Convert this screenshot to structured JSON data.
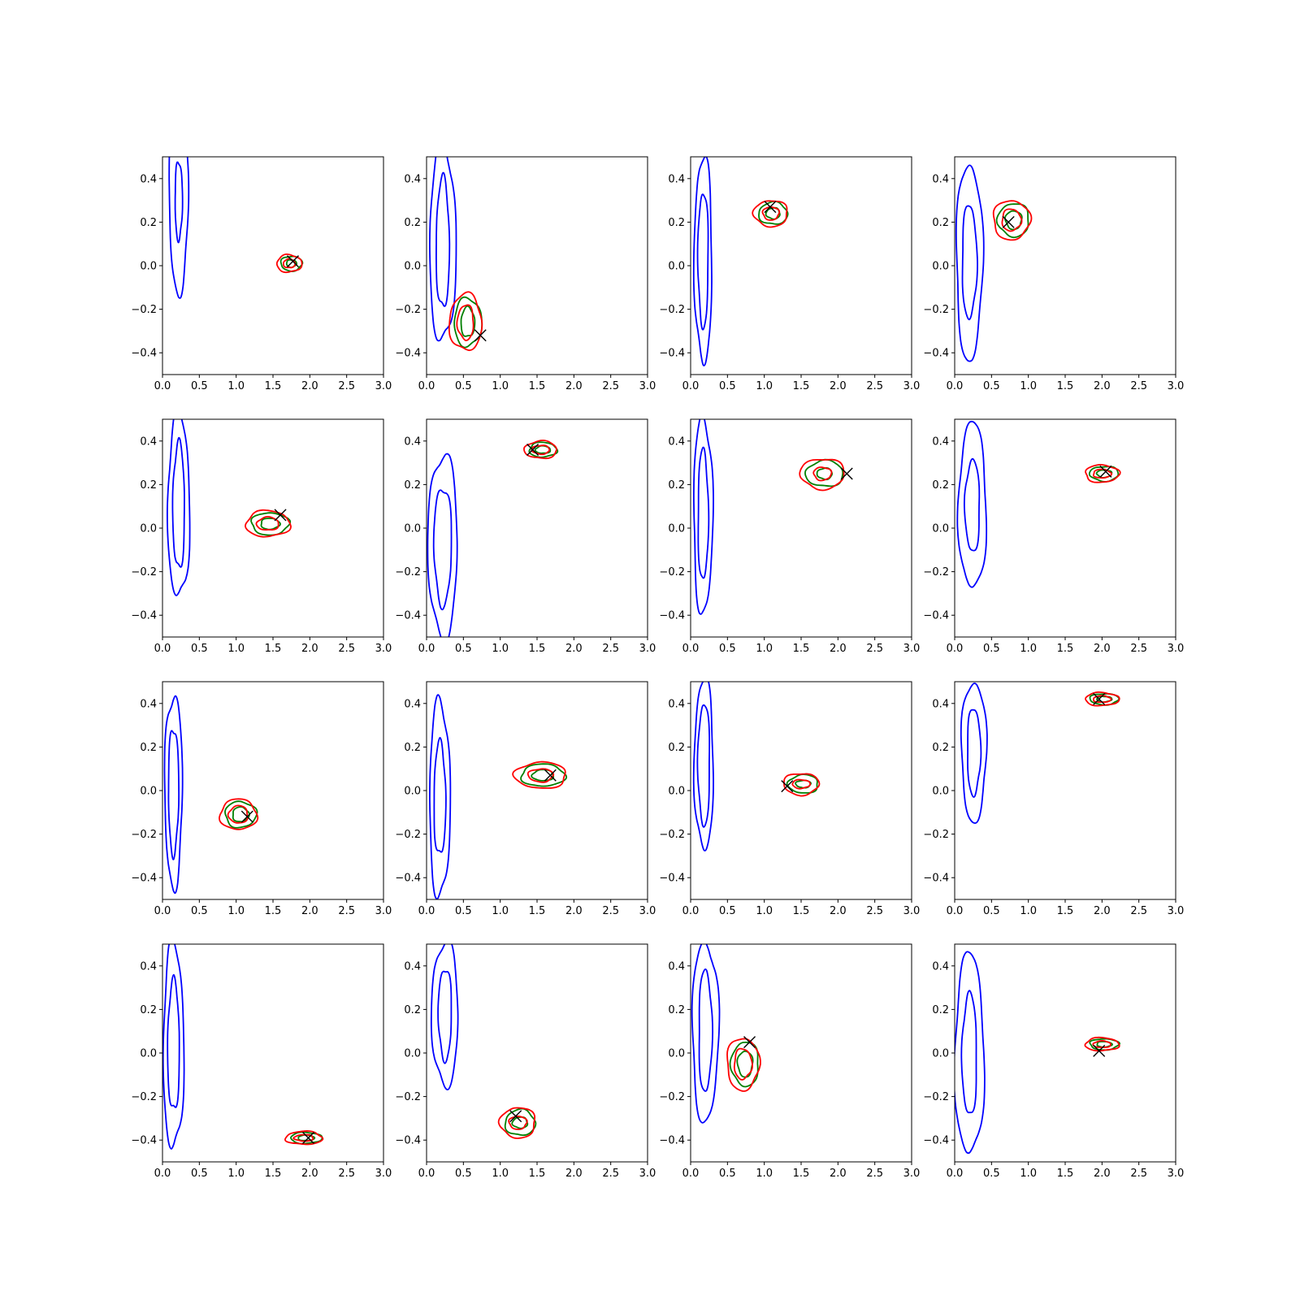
{
  "colors": {
    "prior": "#0000ff",
    "posterior_a": "#008000",
    "posterior_b": "#ff0000",
    "true_value": "#000000"
  },
  "chart_data": {
    "type": "contour-grid",
    "rows": 4,
    "cols": 4,
    "xlim": [
      0.0,
      3.0
    ],
    "ylim": [
      -0.5,
      0.5
    ],
    "xticks": [
      "0.0",
      "0.5",
      "1.0",
      "1.5",
      "2.0",
      "2.5",
      "3.0"
    ],
    "yticks": [
      "−0.4",
      "−0.2",
      "0.0",
      "0.2",
      "0.4"
    ],
    "panels": [
      {
        "prior": {
          "cx": 0.22,
          "cy": 0.3,
          "rx": [
            0.13,
            0.05
          ],
          "ry": [
            0.42,
            0.18
          ]
        },
        "posterior": {
          "cx": 1.75,
          "cy": 0.01,
          "rx": [
            0.17,
            0.08
          ],
          "ry": [
            0.04,
            0.02
          ]
        },
        "true": [
          1.77,
          0.02
        ]
      },
      {
        "prior": {
          "cx": 0.22,
          "cy": 0.1,
          "rx": [
            0.18,
            0.09
          ],
          "ry": [
            0.45,
            0.3
          ]
        },
        "posterior": {
          "cx": 0.56,
          "cy": -0.26,
          "rx": [
            0.22,
            0.11
          ],
          "ry": [
            0.13,
            0.08
          ]
        },
        "true": [
          0.73,
          -0.32
        ]
      },
      {
        "prior": {
          "cx": 0.17,
          "cy": 0.03,
          "rx": [
            0.12,
            0.07
          ],
          "ry": [
            0.47,
            0.31
          ]
        },
        "posterior": {
          "cx": 1.12,
          "cy": 0.24,
          "rx": [
            0.23,
            0.11
          ],
          "ry": [
            0.06,
            0.03
          ]
        },
        "true": [
          1.08,
          0.27
        ]
      },
      {
        "prior": {
          "cx": 0.2,
          "cy": 0.02,
          "rx": [
            0.18,
            0.1
          ],
          "ry": [
            0.45,
            0.26
          ]
        },
        "posterior": {
          "cx": 0.8,
          "cy": 0.21,
          "rx": [
            0.25,
            0.13
          ],
          "ry": [
            0.09,
            0.05
          ]
        },
        "true": [
          0.73,
          0.2
        ]
      },
      {
        "prior": {
          "cx": 0.22,
          "cy": 0.1,
          "rx": [
            0.15,
            0.08
          ],
          "ry": [
            0.42,
            0.29
          ]
        },
        "posterior": {
          "cx": 1.46,
          "cy": 0.02,
          "rx": [
            0.3,
            0.15
          ],
          "ry": [
            0.06,
            0.03
          ]
        },
        "true": [
          1.6,
          0.06
        ]
      },
      {
        "prior": {
          "cx": 0.22,
          "cy": -0.08,
          "rx": [
            0.2,
            0.12
          ],
          "ry": [
            0.42,
            0.27
          ]
        },
        "posterior": {
          "cx": 1.58,
          "cy": 0.36,
          "rx": [
            0.22,
            0.12
          ],
          "ry": [
            0.04,
            0.02
          ]
        },
        "true": [
          1.44,
          0.36
        ]
      },
      {
        "prior": {
          "cx": 0.17,
          "cy": 0.06,
          "rx": [
            0.13,
            0.07
          ],
          "ry": [
            0.45,
            0.3
          ]
        },
        "posterior": {
          "cx": 1.82,
          "cy": 0.25,
          "rx": [
            0.3,
            0.12
          ],
          "ry": [
            0.07,
            0.03
          ]
        },
        "true": [
          2.12,
          0.25
        ]
      },
      {
        "prior": {
          "cx": 0.24,
          "cy": 0.1,
          "rx": [
            0.19,
            0.1
          ],
          "ry": [
            0.38,
            0.21
          ]
        },
        "posterior": {
          "cx": 2.03,
          "cy": 0.25,
          "rx": [
            0.23,
            0.12
          ],
          "ry": [
            0.04,
            0.02
          ]
        },
        "true": [
          2.05,
          0.26
        ]
      },
      {
        "prior": {
          "cx": 0.15,
          "cy": 0.0,
          "rx": [
            0.12,
            0.07
          ],
          "ry": [
            0.44,
            0.29
          ]
        },
        "posterior": {
          "cx": 1.06,
          "cy": -0.11,
          "rx": [
            0.25,
            0.13
          ],
          "ry": [
            0.07,
            0.04
          ]
        },
        "true": [
          1.15,
          -0.12
        ]
      },
      {
        "prior": {
          "cx": 0.18,
          "cy": -0.04,
          "rx": [
            0.14,
            0.08
          ],
          "ry": [
            0.45,
            0.26
          ]
        },
        "posterior": {
          "cx": 1.58,
          "cy": 0.07,
          "rx": [
            0.35,
            0.17
          ],
          "ry": [
            0.06,
            0.03
          ]
        },
        "true": [
          1.68,
          0.07
        ]
      },
      {
        "prior": {
          "cx": 0.18,
          "cy": 0.12,
          "rx": [
            0.13,
            0.08
          ],
          "ry": [
            0.39,
            0.28
          ]
        },
        "posterior": {
          "cx": 1.53,
          "cy": 0.03,
          "rx": [
            0.24,
            0.12
          ],
          "ry": [
            0.05,
            0.02
          ]
        },
        "true": [
          1.31,
          0.02
        ]
      },
      {
        "prior": {
          "cx": 0.26,
          "cy": 0.18,
          "rx": [
            0.17,
            0.09
          ],
          "ry": [
            0.32,
            0.2
          ]
        },
        "posterior": {
          "cx": 2.03,
          "cy": 0.42,
          "rx": [
            0.23,
            0.12
          ],
          "ry": [
            0.03,
            0.015
          ]
        },
        "true": [
          1.96,
          0.42
        ]
      },
      {
        "prior": {
          "cx": 0.15,
          "cy": 0.03,
          "rx": [
            0.14,
            0.08
          ],
          "ry": [
            0.47,
            0.3
          ]
        },
        "posterior": {
          "cx": 1.95,
          "cy": -0.39,
          "rx": [
            0.25,
            0.13
          ],
          "ry": [
            0.03,
            0.015
          ]
        },
        "true": [
          1.98,
          -0.39
        ]
      },
      {
        "prior": {
          "cx": 0.25,
          "cy": 0.18,
          "rx": [
            0.18,
            0.09
          ],
          "ry": [
            0.33,
            0.21
          ]
        },
        "posterior": {
          "cx": 1.27,
          "cy": -0.32,
          "rx": [
            0.24,
            0.12
          ],
          "ry": [
            0.07,
            0.03
          ]
        },
        "true": [
          1.21,
          -0.29
        ]
      },
      {
        "prior": {
          "cx": 0.2,
          "cy": 0.1,
          "rx": [
            0.18,
            0.09
          ],
          "ry": [
            0.41,
            0.28
          ]
        },
        "posterior": {
          "cx": 0.74,
          "cy": -0.05,
          "rx": [
            0.22,
            0.12
          ],
          "ry": [
            0.12,
            0.07
          ]
        },
        "true": [
          0.8,
          0.05
        ]
      },
      {
        "prior": {
          "cx": 0.2,
          "cy": -0.01,
          "rx": [
            0.2,
            0.1
          ],
          "ry": [
            0.46,
            0.28
          ]
        },
        "posterior": {
          "cx": 2.03,
          "cy": 0.04,
          "rx": [
            0.23,
            0.12
          ],
          "ry": [
            0.03,
            0.015
          ]
        },
        "true": [
          1.96,
          0.01
        ]
      }
    ]
  }
}
